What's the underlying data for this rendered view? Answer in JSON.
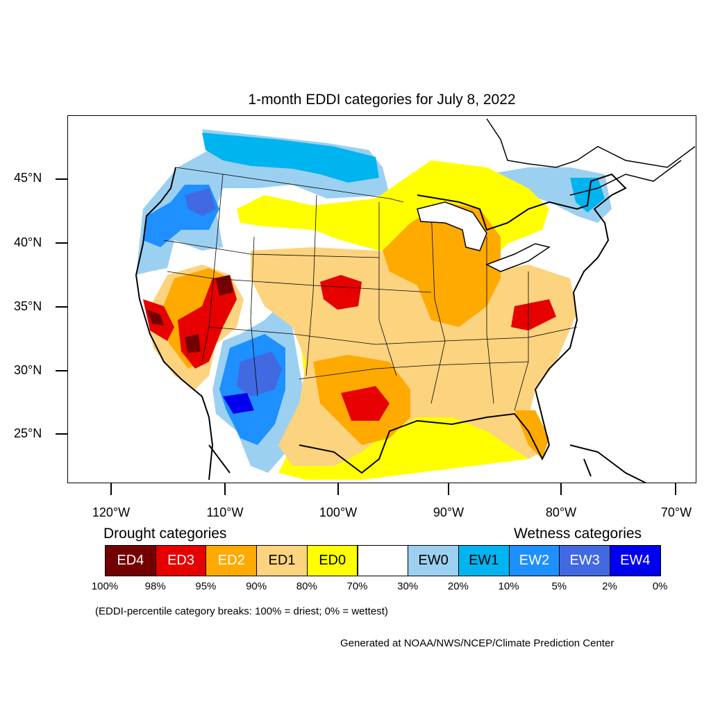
{
  "title": "1-month EDDI categories for July 8, 2022",
  "map": {
    "lat_labels": [
      "45°N",
      "40°N",
      "35°N",
      "30°N",
      "25°N"
    ],
    "lon_labels": [
      "120°W",
      "110°W",
      "100°W",
      "90°W",
      "80°W",
      "70°W"
    ]
  },
  "legend": {
    "drought_heading": "Drought categories",
    "wetness_heading": "Wetness categories",
    "categories": [
      {
        "label": "ED4",
        "color": "#730000",
        "text_color": "#ffffff"
      },
      {
        "label": "ED3",
        "color": "#e60000",
        "text_color": "#ffffff"
      },
      {
        "label": "ED2",
        "color": "#ffaa00",
        "text_color": "#ffffff"
      },
      {
        "label": "ED1",
        "color": "#fcd37f",
        "text_color": "#000000"
      },
      {
        "label": "ED0",
        "color": "#ffff00",
        "text_color": "#000000"
      },
      {
        "label": "",
        "color": "#ffffff",
        "text_color": "#000000"
      },
      {
        "label": "EW0",
        "color": "#9cd0f0",
        "text_color": "#000000"
      },
      {
        "label": "EW1",
        "color": "#00b4f0",
        "text_color": "#000000"
      },
      {
        "label": "EW2",
        "color": "#1e90ff",
        "text_color": "#ffffff"
      },
      {
        "label": "EW3",
        "color": "#4169e1",
        "text_color": "#ffffff"
      },
      {
        "label": "EW4",
        "color": "#0000ee",
        "text_color": "#ffffff"
      }
    ],
    "breaks": [
      "100%",
      "98%",
      "95%",
      "90%",
      "80%",
      "70%",
      "30%",
      "20%",
      "10%",
      "5%",
      "2%",
      "0%"
    ]
  },
  "note": "(EDDI-percentile category breaks: 100% = driest; 0% = wettest)",
  "credit": "Generated at NOAA/NWS/NCEP/Climate Prediction Center"
}
